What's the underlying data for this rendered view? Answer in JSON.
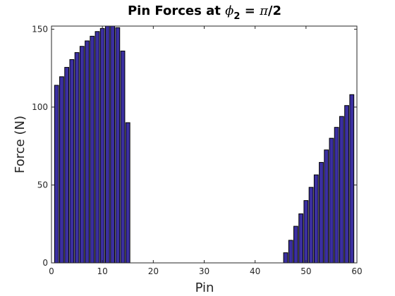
{
  "chart_data": {
    "type": "bar",
    "title": {
      "prefix": "Pin Forces at ",
      "symbol": "ϕ",
      "subscript": "2",
      "equals": " = ",
      "pi": "π",
      "suffix": "/2"
    },
    "xlabel": "Pin",
    "ylabel": "Force (N)",
    "xlim": [
      0,
      60
    ],
    "ylim": [
      0,
      152
    ],
    "xticks": [
      0,
      10,
      20,
      30,
      40,
      50,
      60
    ],
    "yticks": [
      0,
      50,
      100,
      150
    ],
    "grid": false,
    "legend": "none",
    "bar_color": "#3b2fa0",
    "x": [
      1,
      2,
      3,
      4,
      5,
      6,
      7,
      8,
      9,
      10,
      11,
      12,
      13,
      14,
      15,
      46,
      47,
      48,
      49,
      50,
      51,
      52,
      53,
      54,
      55,
      56,
      57,
      58,
      59
    ],
    "values": [
      114,
      119.5,
      125.5,
      130.5,
      135,
      139,
      142.5,
      145.5,
      148.5,
      150.5,
      152,
      152.5,
      151,
      136,
      90,
      6.5,
      14.5,
      23.5,
      31.5,
      40,
      48.5,
      56.5,
      64.5,
      72.5,
      80,
      87,
      94,
      101,
      108
    ]
  }
}
